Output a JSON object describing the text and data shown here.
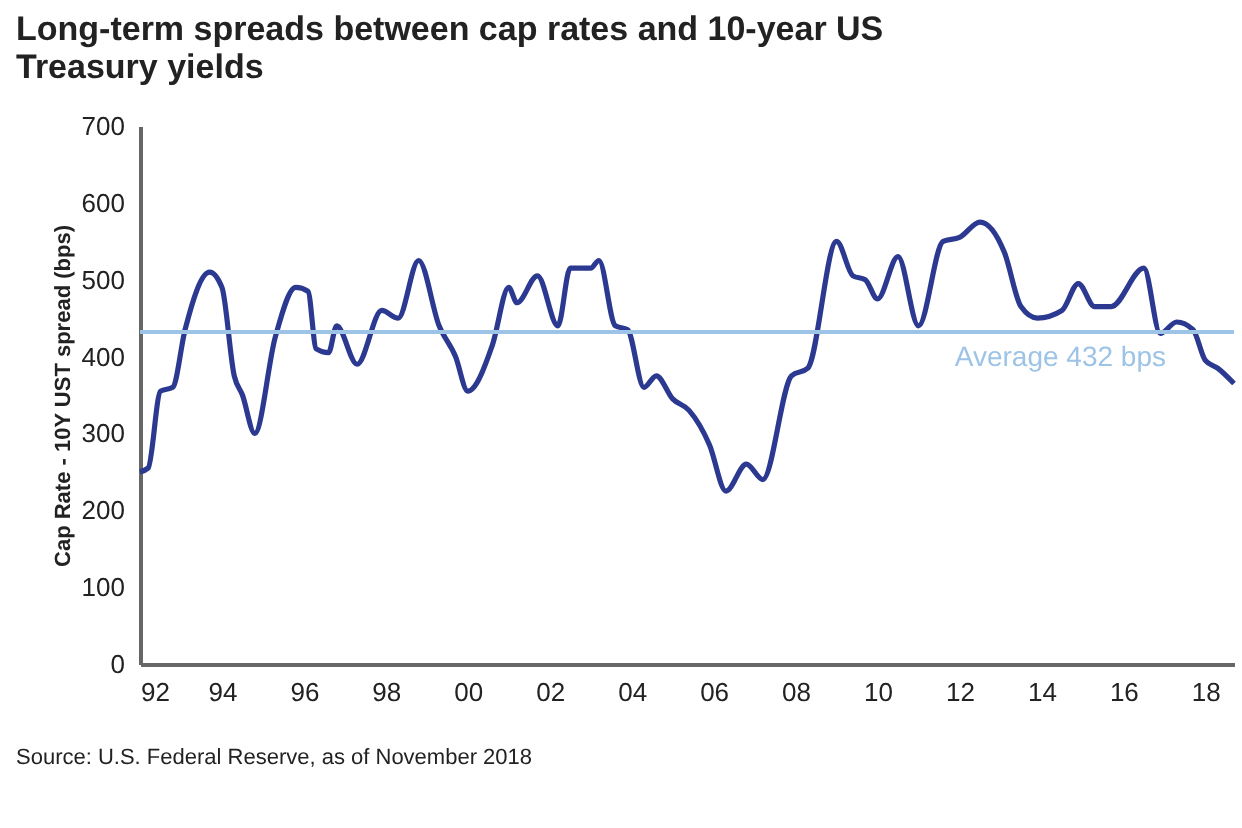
{
  "chart_data": {
    "type": "line",
    "title": "Long-term spreads between cap rates and 10-year US Treasury yields",
    "ylabel": "Cap Rate - 10Y UST spread (bps)",
    "x": [
      1992.0,
      1992.2,
      1992.5,
      1992.8,
      1993.1,
      1993.7,
      1994.0,
      1994.3,
      1994.5,
      1994.8,
      1995.3,
      1995.8,
      1996.1,
      1996.3,
      1996.6,
      1996.8,
      1997.3,
      1997.9,
      1998.3,
      1998.8,
      1999.3,
      1999.7,
      2000.0,
      2000.6,
      2001.0,
      2001.2,
      2001.7,
      2002.2,
      2002.5,
      2003.0,
      2003.2,
      2003.6,
      2003.9,
      2004.3,
      2004.6,
      2005.0,
      2005.4,
      2005.9,
      2006.3,
      2006.8,
      2007.2,
      2007.9,
      2008.3,
      2009.0,
      2009.4,
      2009.7,
      2010.0,
      2010.5,
      2011.0,
      2011.6,
      2012.0,
      2012.5,
      2013.1,
      2013.5,
      2013.9,
      2014.5,
      2014.9,
      2015.3,
      2015.7,
      2016.5,
      2016.9,
      2017.3,
      2017.7,
      2018.0,
      2018.3,
      2018.7
    ],
    "series": [
      {
        "color": "#2b3990",
        "values": [
          250,
          255,
          355,
          360,
          435,
          510,
          490,
          375,
          350,
          300,
          425,
          490,
          485,
          410,
          405,
          440,
          390,
          460,
          450,
          525,
          440,
          400,
          355,
          415,
          490,
          470,
          505,
          440,
          515,
          515,
          525,
          440,
          435,
          360,
          375,
          345,
          330,
          285,
          225,
          260,
          240,
          375,
          385,
          550,
          505,
          500,
          475,
          530,
          440,
          550,
          555,
          575,
          535,
          465,
          450,
          460,
          495,
          465,
          465,
          515,
          430,
          445,
          435,
          395,
          385,
          365
        ]
      }
    ],
    "xlim": [
      1992.0,
      2018.7
    ],
    "xticks": [
      {
        "value": 1992,
        "label": "92"
      },
      {
        "value": 1994,
        "label": "94"
      },
      {
        "value": 1996,
        "label": "96"
      },
      {
        "value": 1998,
        "label": "98"
      },
      {
        "value": 2000,
        "label": "00"
      },
      {
        "value": 2002,
        "label": "02"
      },
      {
        "value": 2004,
        "label": "04"
      },
      {
        "value": 2006,
        "label": "06"
      },
      {
        "value": 2008,
        "label": "08"
      },
      {
        "value": 2010,
        "label": "10"
      },
      {
        "value": 2012,
        "label": "12"
      },
      {
        "value": 2014,
        "label": "14"
      },
      {
        "value": 2016,
        "label": "16"
      },
      {
        "value": 2018,
        "label": "18"
      }
    ],
    "ylim": [
      0,
      700
    ],
    "yticks": [
      0,
      100,
      200,
      300,
      400,
      500,
      600,
      700
    ],
    "ref_lines": [
      {
        "axis": "y",
        "value": 432,
        "label": "Average  432 bps",
        "color": "#9dc3e6"
      }
    ],
    "annotations": [
      "Source: U.S. Federal Reserve, as of November 2018"
    ],
    "grid": false,
    "marker": "none",
    "line_style": "solid"
  }
}
